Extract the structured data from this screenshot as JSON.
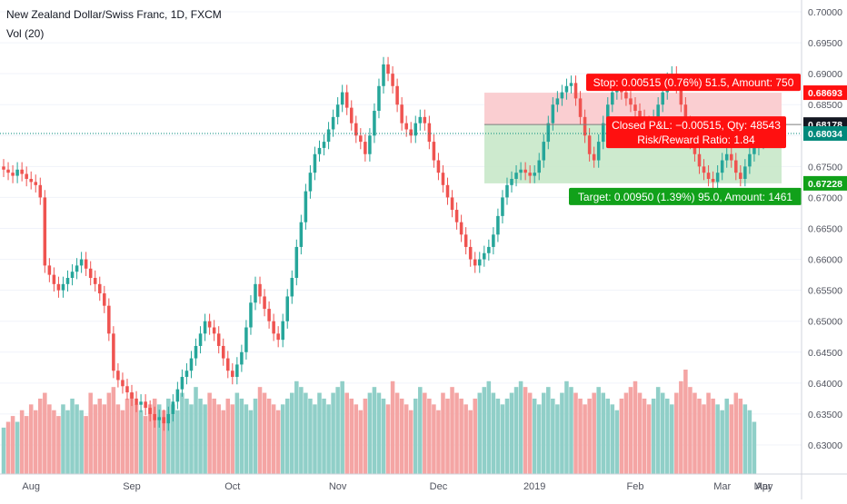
{
  "header": {
    "symbol_title": "New Zealand Dollar/Swiss Franc, 1D, FXCM",
    "volume_indicator": "Vol (20)"
  },
  "colors": {
    "up": "#26a69a",
    "down": "#ef5350",
    "volume_up": "#90cfc8",
    "volume_down": "#f4a5a4",
    "stop_zone": "#f9c9cc",
    "target_zone": "#c8e8c9",
    "stop_label": "#ff1010",
    "target_label": "#11a11a",
    "entry_line": "#7d7d7d",
    "last_price": "#00897b",
    "axis_text": "#50535e"
  },
  "chart_data": {
    "type": "candlestick",
    "title": "New Zealand Dollar/Swiss Franc, 1D, FXCM",
    "y_axis_ticks": [
      "0.70000",
      "0.69500",
      "0.69000",
      "0.68500",
      "0.68000",
      "0.67500",
      "0.67000",
      "0.66500",
      "0.66000",
      "0.65500",
      "0.65000",
      "0.64500",
      "0.64000",
      "0.63500",
      "0.63000"
    ],
    "ylim": [
      0.6255,
      0.7015
    ],
    "x_axis_ticks": [
      "Aug",
      "Sep",
      "Oct",
      "Nov",
      "Dec",
      "2019",
      "Feb",
      "Mar",
      "Apr",
      "May"
    ],
    "price_markers": [
      {
        "label": "0.68693",
        "value": 0.68693,
        "kind": "stop"
      },
      {
        "label": "0.68178",
        "value": 0.68178,
        "kind": "entry"
      },
      {
        "label": "0.68034",
        "value": 0.68034,
        "kind": "last"
      },
      {
        "label": "0.67228",
        "value": 0.67228,
        "kind": "target"
      }
    ],
    "position": {
      "stop_text": "Stop: 0.00515 (0.76%) 51.5, Amount: 750",
      "pnl_text": "Closed P&L: −0.00515, Qty: 48543",
      "rr_text": "Risk/Reward Ratio: 1.84",
      "target_text": "Target: 0.00950 (1.39%) 95.0, Amount: 1461",
      "entry": 0.68178,
      "stop": 0.68693,
      "target": 0.67228
    },
    "closes": [
      0.6745,
      0.674,
      0.6735,
      0.6745,
      0.6738,
      0.673,
      0.6725,
      0.672,
      0.67,
      0.659,
      0.6575,
      0.656,
      0.655,
      0.656,
      0.657,
      0.658,
      0.659,
      0.66,
      0.6585,
      0.657,
      0.656,
      0.6545,
      0.6525,
      0.648,
      0.642,
      0.6405,
      0.6395,
      0.6385,
      0.6375,
      0.6365,
      0.637,
      0.636,
      0.635,
      0.634,
      0.6345,
      0.6335,
      0.635,
      0.637,
      0.639,
      0.641,
      0.642,
      0.644,
      0.646,
      0.648,
      0.65,
      0.649,
      0.648,
      0.646,
      0.644,
      0.642,
      0.641,
      0.643,
      0.645,
      0.649,
      0.653,
      0.656,
      0.654,
      0.652,
      0.65,
      0.648,
      0.647,
      0.65,
      0.654,
      0.657,
      0.662,
      0.666,
      0.671,
      0.674,
      0.677,
      0.678,
      0.679,
      0.681,
      0.683,
      0.685,
      0.687,
      0.6845,
      0.682,
      0.68,
      0.679,
      0.677,
      0.68,
      0.684,
      0.688,
      0.6915,
      0.69,
      0.688,
      0.685,
      0.682,
      0.681,
      0.68,
      0.682,
      0.683,
      0.682,
      0.679,
      0.676,
      0.674,
      0.672,
      0.67,
      0.668,
      0.666,
      0.664,
      0.662,
      0.66,
      0.659,
      0.66,
      0.661,
      0.662,
      0.664,
      0.667,
      0.67,
      0.672,
      0.673,
      0.674,
      0.6745,
      0.674,
      0.6735,
      0.674,
      0.676,
      0.679,
      0.682,
      0.685,
      0.686,
      0.687,
      0.688,
      0.6885,
      0.686,
      0.683,
      0.68,
      0.677,
      0.676,
      0.679,
      0.682,
      0.685,
      0.687,
      0.688,
      0.687,
      0.686,
      0.685,
      0.684,
      0.683,
      0.682,
      0.681,
      0.683,
      0.685,
      0.687,
      0.689,
      0.69,
      0.688,
      0.685,
      0.682,
      0.679,
      0.677,
      0.675,
      0.674,
      0.673,
      0.6725,
      0.674,
      0.676,
      0.677,
      0.676,
      0.674,
      0.673,
      0.675,
      0.677,
      0.678,
      0.679,
      0.6803
    ],
    "volumes": [
      8,
      9,
      10,
      9,
      11,
      10,
      12,
      11,
      13,
      14,
      12,
      11,
      10,
      12,
      11,
      13,
      12,
      11,
      10,
      14,
      12,
      13,
      12,
      14,
      15,
      12,
      11,
      13,
      14,
      12,
      11,
      10,
      12,
      13,
      12,
      11,
      13,
      12,
      11,
      14,
      13,
      12,
      15,
      13,
      12,
      14,
      13,
      12,
      11,
      13,
      12,
      14,
      13,
      12,
      11,
      13,
      15,
      14,
      13,
      12,
      11,
      12,
      13,
      14,
      16,
      15,
      14,
      13,
      12,
      14,
      13,
      12,
      14,
      15,
      16,
      14,
      13,
      12,
      11,
      13,
      14,
      15,
      14,
      13,
      12,
      16,
      14,
      13,
      12,
      11,
      13,
      15,
      14,
      13,
      12,
      11,
      14,
      13,
      15,
      14,
      13,
      12,
      11,
      13,
      14,
      15,
      16,
      14,
      13,
      12,
      13,
      14,
      15,
      16,
      15,
      14,
      13,
      12,
      14,
      15,
      13,
      12,
      14,
      16,
      15,
      14,
      13,
      12,
      13,
      14,
      15,
      14,
      13,
      12,
      11,
      13,
      14,
      15,
      16,
      14,
      13,
      12,
      13,
      15,
      14,
      13,
      12,
      14,
      16,
      18,
      15,
      14,
      13,
      12,
      14,
      13,
      12,
      11,
      13,
      12,
      14,
      13,
      12,
      11,
      9
    ],
    "xlabel": "",
    "ylabel": ""
  }
}
